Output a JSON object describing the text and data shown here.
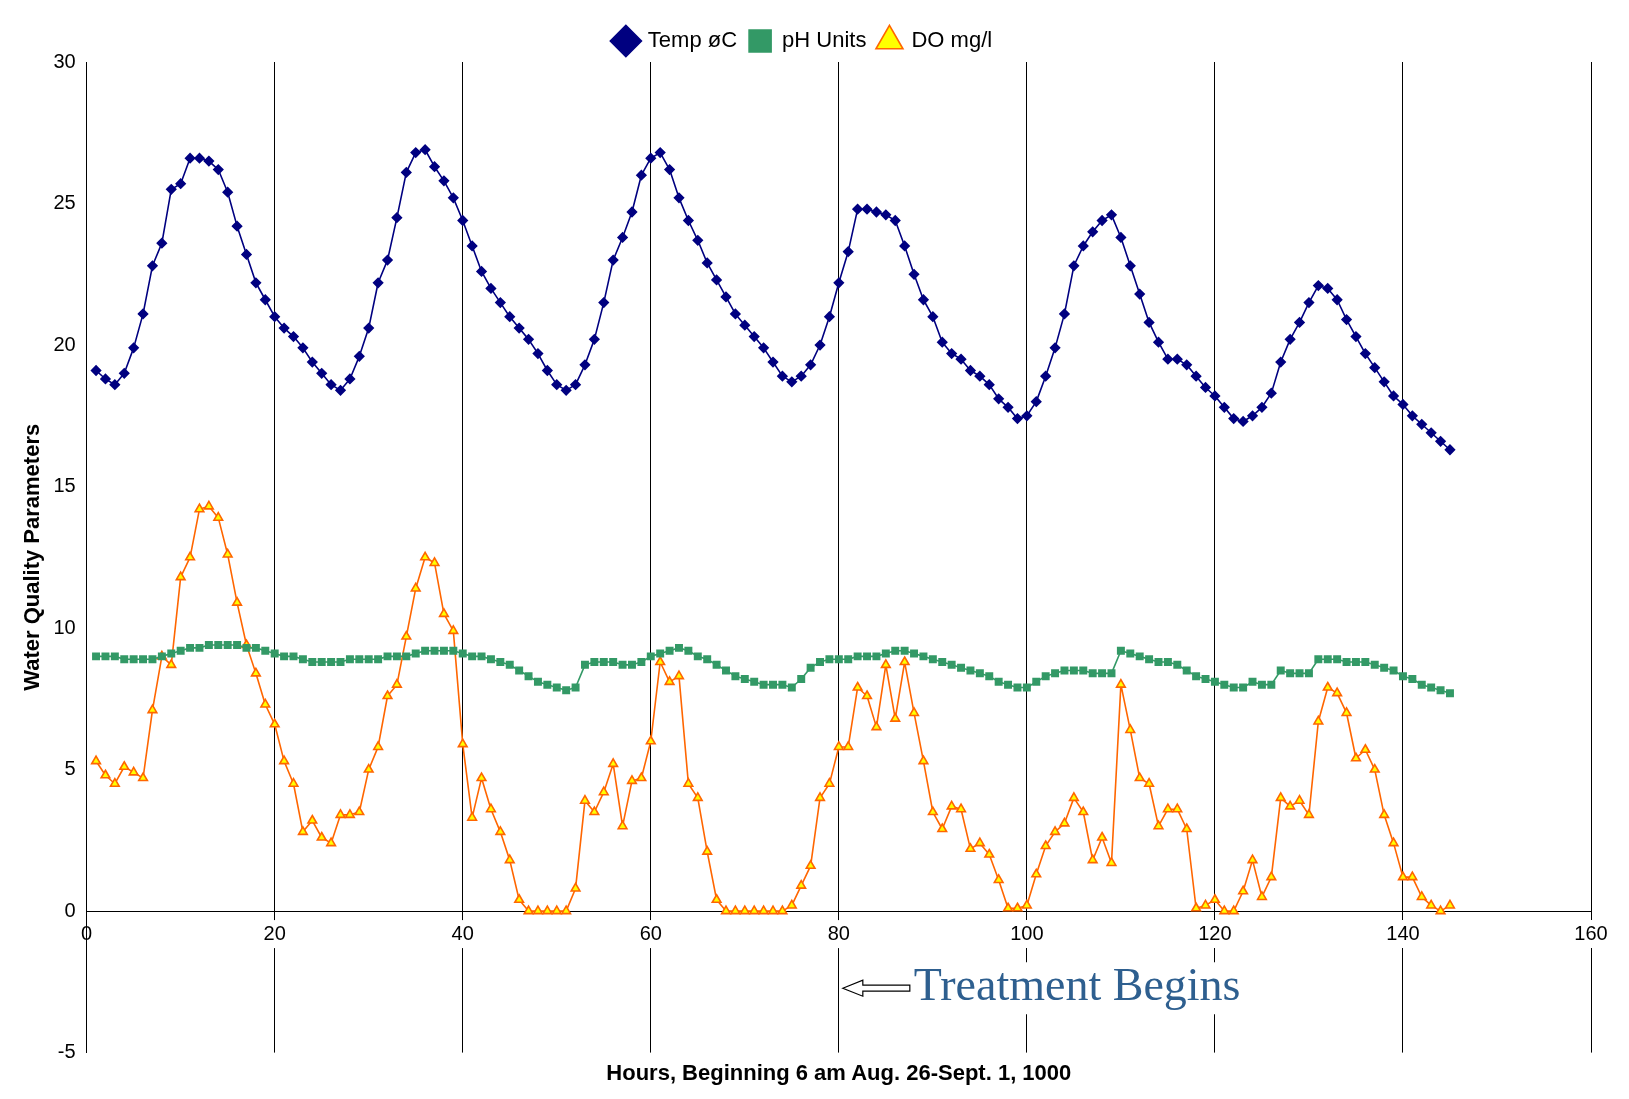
{
  "chart_data": {
    "type": "line",
    "xlabel": "Hours, Beginning 6 am Aug. 26-Sept. 1, 1000",
    "ylabel": "Water Quality Parameters",
    "x": [
      1,
      2,
      3,
      4,
      5,
      6,
      7,
      8,
      9,
      10,
      11,
      12,
      13,
      14,
      15,
      16,
      17,
      18,
      19,
      20,
      21,
      22,
      23,
      24,
      25,
      26,
      27,
      28,
      29,
      30,
      31,
      32,
      33,
      34,
      35,
      36,
      37,
      38,
      39,
      40,
      41,
      42,
      43,
      44,
      45,
      46,
      47,
      48,
      49,
      50,
      51,
      52,
      53,
      54,
      55,
      56,
      57,
      58,
      59,
      60,
      61,
      62,
      63,
      64,
      65,
      66,
      67,
      68,
      69,
      70,
      71,
      72,
      73,
      74,
      75,
      76,
      77,
      78,
      79,
      80,
      81,
      82,
      83,
      84,
      85,
      86,
      87,
      88,
      89,
      90,
      91,
      92,
      93,
      94,
      95,
      96,
      97,
      98,
      99,
      100,
      101,
      102,
      103,
      104,
      105,
      106,
      107,
      108,
      109,
      110,
      111,
      112,
      113,
      114,
      115,
      116,
      117,
      118,
      119,
      120,
      121,
      122,
      123,
      124,
      125,
      126,
      127,
      128,
      129,
      130,
      131,
      132,
      133,
      134,
      135,
      136,
      137,
      138,
      139,
      140,
      141,
      142,
      143,
      144,
      145
    ],
    "series": [
      {
        "name": "Temp øC",
        "color": "#000080",
        "marker": "diamond",
        "values": [
          19.1,
          18.8,
          18.6,
          19.0,
          19.9,
          21.1,
          22.8,
          23.6,
          25.5,
          25.7,
          26.6,
          26.6,
          26.5,
          26.2,
          25.4,
          24.2,
          23.2,
          22.2,
          21.6,
          21.0,
          20.6,
          20.3,
          19.9,
          19.4,
          19.0,
          18.6,
          18.4,
          18.8,
          19.6,
          20.6,
          22.2,
          23.0,
          24.5,
          26.1,
          26.8,
          26.9,
          26.3,
          25.8,
          25.2,
          24.4,
          23.5,
          22.6,
          22.0,
          21.5,
          21.0,
          20.6,
          20.2,
          19.7,
          19.1,
          18.6,
          18.4,
          18.6,
          19.3,
          20.2,
          21.5,
          23.0,
          23.8,
          24.7,
          26.0,
          26.6,
          26.8,
          26.2,
          25.2,
          24.4,
          23.7,
          22.9,
          22.3,
          21.7,
          21.1,
          20.7,
          20.3,
          19.9,
          19.4,
          18.9,
          18.7,
          18.9,
          19.3,
          20.0,
          21.0,
          22.2,
          23.3,
          24.8,
          24.8,
          24.7,
          24.6,
          24.4,
          23.5,
          22.5,
          21.6,
          21.0,
          20.1,
          19.7,
          19.5,
          19.1,
          18.9,
          18.6,
          18.1,
          17.8,
          17.4,
          17.5,
          18.0,
          18.9,
          19.9,
          21.1,
          22.8,
          23.5,
          24.0,
          24.4,
          24.6,
          23.8,
          22.8,
          21.8,
          20.8,
          20.1,
          19.5,
          19.5,
          19.3,
          18.9,
          18.5,
          18.2,
          17.8,
          17.4,
          17.3,
          17.5,
          17.8,
          18.3,
          19.4,
          20.2,
          20.8,
          21.5,
          22.1,
          22.0,
          21.6,
          20.9,
          20.3,
          19.7,
          19.2,
          18.7,
          18.2,
          17.9,
          17.5,
          17.2,
          16.9,
          16.6,
          16.3
        ]
      },
      {
        "name": "pH Units",
        "color": "#339966",
        "marker": "square",
        "values": [
          9.0,
          9.0,
          9.0,
          8.9,
          8.9,
          8.9,
          8.9,
          9.0,
          9.1,
          9.2,
          9.3,
          9.3,
          9.4,
          9.4,
          9.4,
          9.4,
          9.3,
          9.3,
          9.2,
          9.1,
          9.0,
          9.0,
          8.9,
          8.8,
          8.8,
          8.8,
          8.8,
          8.9,
          8.9,
          8.9,
          8.9,
          9.0,
          9.0,
          9.0,
          9.1,
          9.2,
          9.2,
          9.2,
          9.2,
          9.1,
          9.0,
          9.0,
          8.9,
          8.8,
          8.7,
          8.5,
          8.3,
          8.1,
          8.0,
          7.9,
          7.8,
          7.9,
          8.7,
          8.8,
          8.8,
          8.8,
          8.7,
          8.7,
          8.8,
          9.0,
          9.1,
          9.2,
          9.3,
          9.2,
          9.0,
          8.9,
          8.7,
          8.5,
          8.3,
          8.2,
          8.1,
          8.0,
          8.0,
          8.0,
          7.9,
          8.2,
          8.6,
          8.8,
          8.9,
          8.9,
          8.9,
          9.0,
          9.0,
          9.0,
          9.1,
          9.2,
          9.2,
          9.1,
          9.0,
          8.9,
          8.8,
          8.7,
          8.6,
          8.5,
          8.4,
          8.3,
          8.1,
          8.0,
          7.9,
          7.9,
          8.1,
          8.3,
          8.4,
          8.5,
          8.5,
          8.5,
          8.4,
          8.4,
          8.4,
          9.2,
          9.1,
          9.0,
          8.9,
          8.8,
          8.8,
          8.7,
          8.5,
          8.3,
          8.2,
          8.1,
          8.0,
          7.9,
          7.9,
          8.1,
          8.0,
          8.0,
          8.5,
          8.4,
          8.4,
          8.4,
          8.9,
          8.9,
          8.9,
          8.8,
          8.8,
          8.8,
          8.7,
          8.6,
          8.5,
          8.3,
          8.2,
          8.0,
          7.9,
          7.8,
          7.7
        ]
      },
      {
        "name": "DO mg/l",
        "color": "#ff6600",
        "marker": "triangle",
        "values": [
          5.3,
          4.8,
          4.5,
          5.1,
          4.9,
          4.7,
          7.1,
          9.0,
          8.7,
          11.8,
          12.5,
          14.2,
          14.3,
          13.9,
          12.6,
          10.9,
          9.4,
          8.4,
          7.3,
          6.6,
          5.3,
          4.5,
          2.8,
          3.2,
          2.6,
          2.4,
          3.4,
          3.4,
          3.5,
          5.0,
          5.8,
          7.6,
          8.0,
          9.7,
          11.4,
          12.5,
          12.3,
          10.5,
          9.9,
          5.9,
          3.3,
          4.7,
          3.6,
          2.8,
          1.8,
          0.4,
          0,
          0,
          0,
          0,
          0,
          0.8,
          3.9,
          3.5,
          4.2,
          5.2,
          3.0,
          4.6,
          4.7,
          6.0,
          8.8,
          8.1,
          8.3,
          4.5,
          4.0,
          2.1,
          0.4,
          0,
          0,
          0,
          0,
          0,
          0,
          0,
          0.2,
          0.9,
          1.6,
          4.0,
          4.5,
          5.8,
          5.8,
          7.9,
          7.6,
          6.5,
          8.7,
          6.8,
          8.8,
          7.0,
          5.3,
          3.5,
          2.9,
          3.7,
          3.6,
          2.2,
          2.4,
          2.0,
          1.1,
          0.1,
          0.1,
          0.2,
          1.3,
          2.3,
          2.8,
          3.1,
          4.0,
          3.5,
          1.8,
          2.6,
          1.7,
          8.0,
          6.4,
          4.7,
          4.5,
          3.0,
          3.6,
          3.6,
          2.9,
          0.1,
          0.2,
          0.4,
          0,
          0,
          0.7,
          1.8,
          0.5,
          1.2,
          4.0,
          3.7,
          3.9,
          3.4,
          6.7,
          7.9,
          7.7,
          7.0,
          5.4,
          5.7,
          5.0,
          3.4,
          2.4,
          1.2,
          1.2,
          0.5,
          0.2,
          0,
          0.2
        ]
      }
    ],
    "xlim": [
      0,
      160
    ],
    "xticks": [
      0,
      20,
      40,
      60,
      80,
      100,
      120,
      140,
      160
    ],
    "ylim": [
      -5,
      30
    ],
    "yticks": [
      -5,
      0,
      5,
      10,
      15,
      20,
      25,
      30
    ],
    "grid": "x",
    "legend": "top",
    "annotations": [
      "Treatment Begins"
    ]
  }
}
